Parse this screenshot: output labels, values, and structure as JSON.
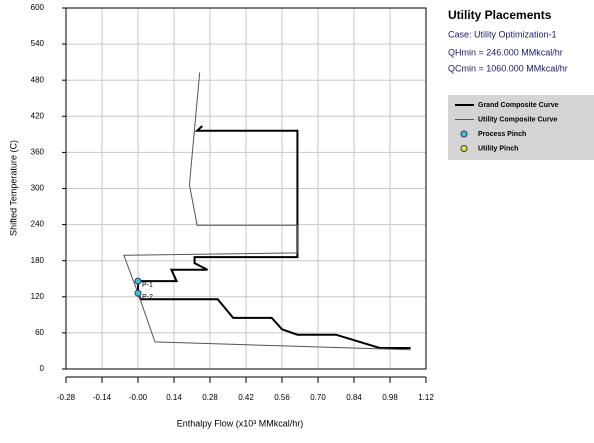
{
  "chart_data": {
    "type": "line",
    "title": "Utility Placements",
    "subtitle": [
      "Case: Utility Optimization-1",
      "QHmin = 246.000 MMkcal/hr",
      "QCmin = 1060.000 MMkcal/hr"
    ],
    "xlabel": "Enthalpy Flow (x10³  MMkcal/hr)",
    "ylabel": "Shifted Temperature (C)",
    "xlim": [
      -0.28,
      1.12
    ],
    "ylim": [
      0,
      600
    ],
    "xticks": [
      -0.28,
      -0.14,
      {
        "value": 0,
        "label": "-0.00"
      },
      0.14,
      0.28,
      0.42,
      0.56,
      {
        "value": 0.7,
        "label": "0.70"
      },
      0.84,
      0.98,
      1.12
    ],
    "yticks": [
      0,
      60,
      120,
      180,
      240,
      300,
      360,
      420,
      480,
      540,
      600
    ],
    "grid": true,
    "legend": "right",
    "series": [
      {
        "name": "Grand Composite Curve",
        "type": "line",
        "color": "#000000",
        "linewidth": 2,
        "x": [
          0.25,
          0.23,
          0.62,
          0.62,
          0.22,
          0.22,
          0.27,
          0.13,
          0.15,
          0,
          0,
          0.01,
          0.31,
          0.37,
          0.52,
          0.56,
          0.62,
          0.77,
          0.94,
          1.06
        ],
        "values": [
          404,
          396,
          396,
          186,
          186,
          176,
          165,
          165,
          146,
          146,
          126,
          116,
          116,
          85,
          85,
          66,
          57,
          57,
          35,
          35
        ]
      },
      {
        "name": "Utility Composite Curve",
        "type": "line",
        "color": "#555555",
        "linewidth": 1,
        "x": [
          0.24,
          0.2,
          0.23,
          0.62,
          0.62,
          -0.055,
          0,
          0.066,
          1.06
        ],
        "values": [
          493,
          306,
          239,
          239,
          193,
          189,
          126,
          45,
          32
        ]
      },
      {
        "name": "Process Pinch",
        "type": "scatter",
        "color": "#33cccc",
        "x": [
          0,
          0
        ],
        "values": [
          146,
          126
        ],
        "point_labels": [
          "P-1",
          "P-2"
        ]
      },
      {
        "name": "Utility Pinch",
        "type": "scatter",
        "color": "#e8e830",
        "x": [],
        "values": [],
        "point_labels": []
      }
    ]
  }
}
